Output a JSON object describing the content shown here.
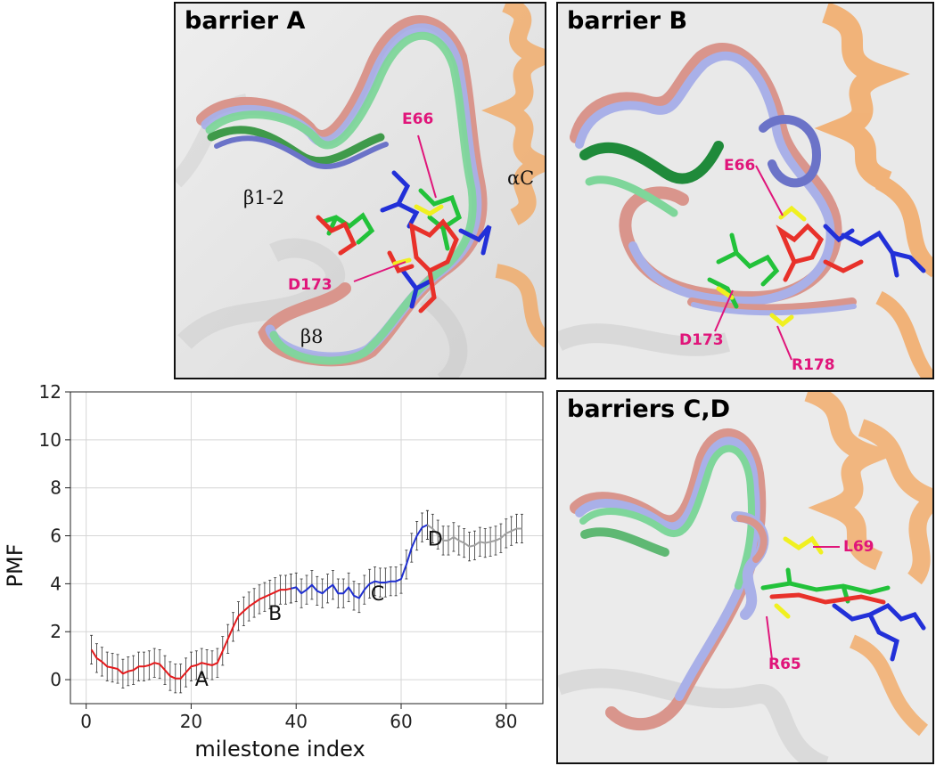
{
  "panels": {
    "a": {
      "title": "barrier A",
      "residues": [
        "E66",
        "D173"
      ],
      "structure_labels": [
        "β1-2",
        "αC",
        "β8"
      ]
    },
    "b": {
      "title": "barrier B",
      "residues": [
        "E66",
        "D173",
        "R178"
      ]
    },
    "cd": {
      "title": "barriers C,D",
      "residues": [
        "L69",
        "R65"
      ]
    }
  },
  "colors": {
    "residue_label": "#e0157a",
    "ligand_red": "#e8312a",
    "ligand_green": "#22c23a",
    "ligand_blue": "#2230d8",
    "residue_yellow": "#f0f020",
    "ribbon_pink": "#d9958c",
    "ribbon_lavender": "#a9b0e8",
    "ribbon_green": "#7ed69a",
    "kinase_orange": "#f3a55c",
    "segment_A": "#e41a1c",
    "segment_BC": "#1f2fd0",
    "segment_D": "#a0a0a0"
  },
  "chart_data": {
    "type": "line",
    "xlabel": "milestone index",
    "ylabel": "PMF",
    "xlim": [
      -3,
      87
    ],
    "ylim": [
      -1,
      12
    ],
    "xticks": [
      0,
      20,
      40,
      60,
      80
    ],
    "yticks": [
      0,
      2,
      4,
      6,
      8,
      10,
      12
    ],
    "grid": true,
    "error_bar": 0.6,
    "series": [
      {
        "color": "#e41a1c",
        "x": [
          1,
          2,
          3,
          4,
          5,
          6,
          7,
          8,
          9,
          10,
          11,
          12,
          13,
          14,
          15,
          16,
          17,
          18,
          19,
          20,
          21,
          22,
          23,
          24,
          25,
          26,
          27,
          28,
          29,
          30,
          31,
          32,
          33,
          34,
          35,
          36,
          37,
          38,
          39
        ],
        "y": [
          1.25,
          0.9,
          0.75,
          0.55,
          0.5,
          0.45,
          0.25,
          0.35,
          0.4,
          0.55,
          0.55,
          0.6,
          0.7,
          0.65,
          0.4,
          0.15,
          0.05,
          0.05,
          0.3,
          0.55,
          0.6,
          0.7,
          0.65,
          0.6,
          0.7,
          1.2,
          1.7,
          2.2,
          2.65,
          2.85,
          3.05,
          3.2,
          3.35,
          3.45,
          3.55,
          3.65,
          3.75,
          3.75,
          3.8
        ]
      },
      {
        "color": "#1f2fd0",
        "x": [
          39,
          40,
          41,
          42,
          43,
          44,
          45,
          46,
          47,
          48,
          49,
          50,
          51,
          52,
          53,
          54,
          55,
          56,
          57,
          58,
          59,
          60,
          61,
          62,
          63,
          64,
          65
        ],
        "y": [
          3.8,
          3.85,
          3.6,
          3.75,
          3.95,
          3.7,
          3.6,
          3.8,
          3.95,
          3.6,
          3.6,
          3.85,
          3.5,
          3.4,
          3.75,
          4.0,
          4.1,
          4.05,
          4.05,
          4.1,
          4.1,
          4.2,
          4.8,
          5.5,
          6.0,
          6.35,
          6.45
        ]
      },
      {
        "color": "#a0a0a0",
        "x": [
          65,
          66,
          67,
          68,
          69,
          70,
          71,
          72,
          73,
          74,
          75,
          76,
          77,
          78,
          79,
          80,
          81,
          82,
          83
        ],
        "y": [
          6.45,
          6.3,
          6.05,
          5.8,
          5.8,
          5.95,
          5.8,
          5.7,
          5.55,
          5.6,
          5.75,
          5.7,
          5.75,
          5.8,
          5.9,
          6.1,
          6.2,
          6.3,
          6.3
        ]
      }
    ],
    "annotations": [
      {
        "text": "A",
        "x": 22,
        "y": -0.25
      },
      {
        "text": "B",
        "x": 36,
        "y": 2.5
      },
      {
        "text": "C",
        "x": 55.5,
        "y": 3.3
      },
      {
        "text": "D",
        "x": 66.5,
        "y": 5.6
      }
    ]
  }
}
